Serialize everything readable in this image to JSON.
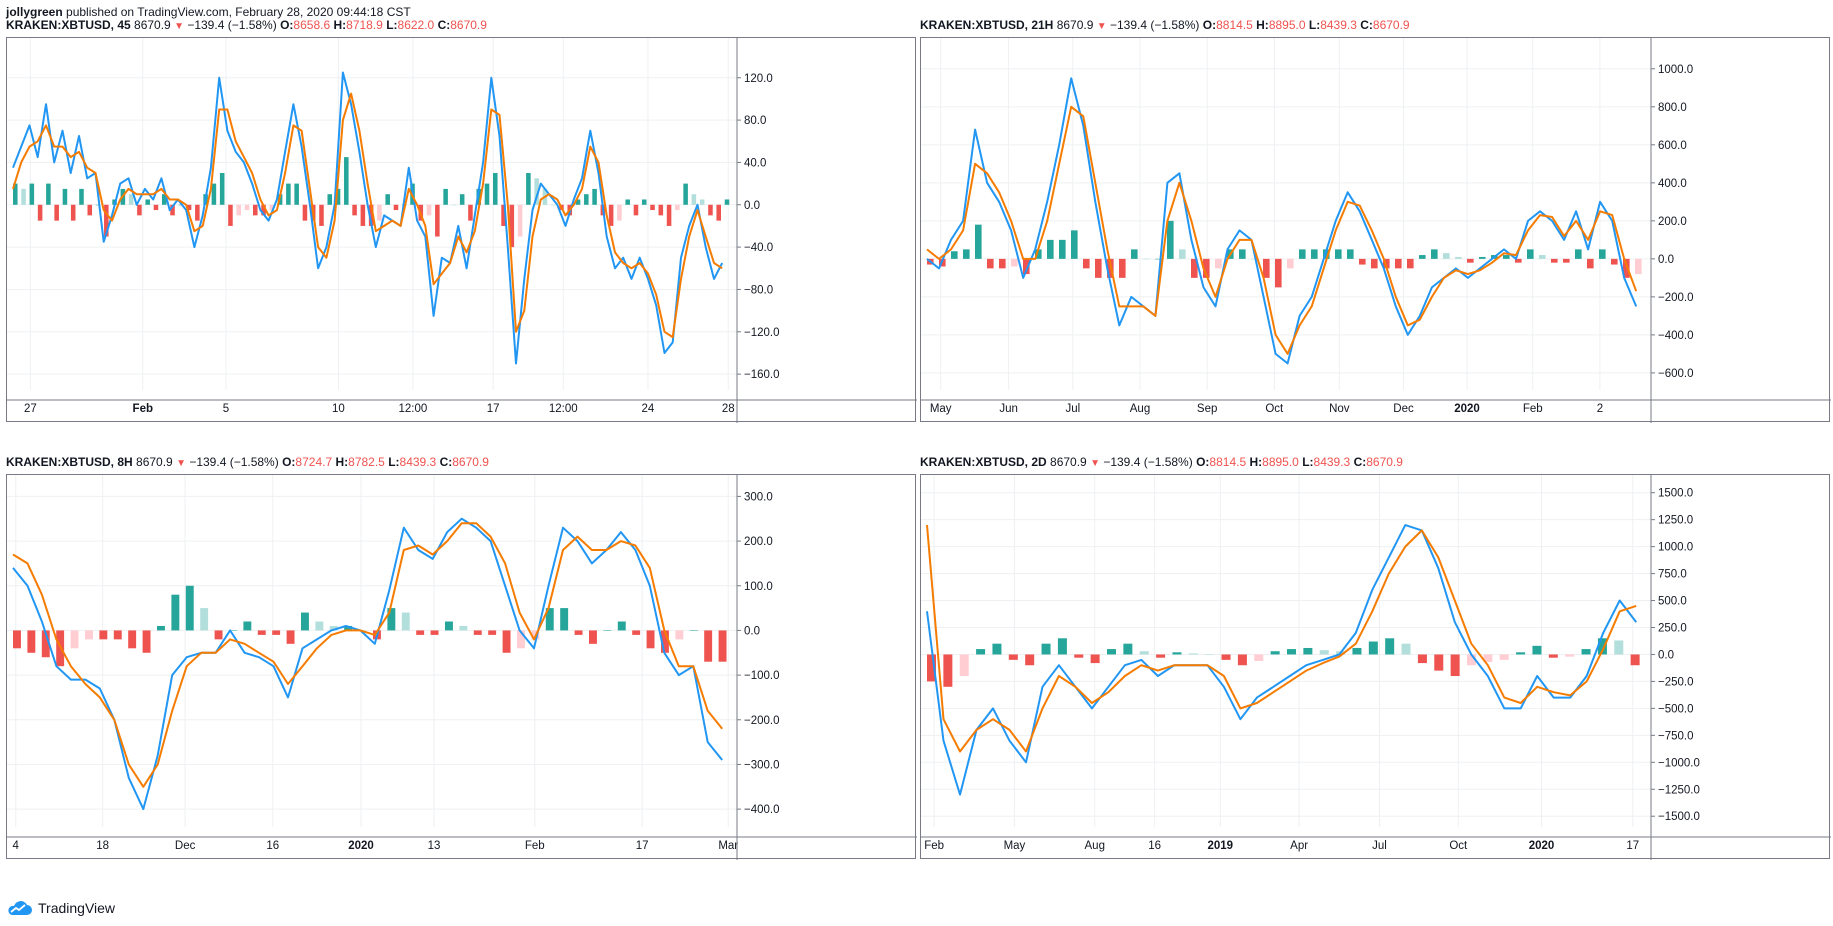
{
  "header": {
    "author": "jollygreen",
    "published": "published on TradingView.com, February 28, 2020 09:44:18 CST"
  },
  "colors": {
    "line_blue": "#2196f3",
    "line_orange": "#f57c00",
    "hist_green_strong": "#26a69a",
    "hist_green_light": "#b2dfdb",
    "hist_red_strong": "#ef5350",
    "hist_red_light": "#ffcdd2",
    "grid": "#eef0f3"
  },
  "footer": {
    "brand": "TradingView"
  },
  "panels": [
    {
      "symbol": "KRAKEN:XBTUSD, 45",
      "last": "8670.9",
      "change": "−139.4 (−1.58%)",
      "o": "8658.6",
      "h": "8718.9",
      "l": "8622.0",
      "c": "8670.9",
      "y_ticks": [
        "120.0",
        "80.0",
        "40.0",
        "0.0",
        "−40.0",
        "−80.0",
        "−120.0",
        "−160.0"
      ],
      "x_ticks": [
        {
          "t": "27",
          "b": false
        },
        {
          "t": "Feb",
          "b": true
        },
        {
          "t": "5",
          "b": false
        },
        {
          "t": "10",
          "b": false
        },
        {
          "t": "12:00",
          "b": false
        },
        {
          "t": "17",
          "b": false
        },
        {
          "t": "12:00",
          "b": false
        },
        {
          "t": "24",
          "b": false
        },
        {
          "t": "28",
          "b": false
        }
      ]
    },
    {
      "symbol": "KRAKEN:XBTUSD, 21H",
      "last": "8670.9",
      "change": "−139.4 (−1.58%)",
      "o": "8814.5",
      "h": "8895.0",
      "l": "8439.3",
      "c": "8670.9",
      "y_ticks": [
        "1000.0",
        "800.0",
        "600.0",
        "400.0",
        "200.0",
        "0.0",
        "−200.0",
        "−400.0",
        "−600.0"
      ],
      "x_ticks": [
        {
          "t": "May",
          "b": false
        },
        {
          "t": "Jun",
          "b": false
        },
        {
          "t": "Jul",
          "b": false
        },
        {
          "t": "Aug",
          "b": false
        },
        {
          "t": "Sep",
          "b": false
        },
        {
          "t": "Oct",
          "b": false
        },
        {
          "t": "Nov",
          "b": false
        },
        {
          "t": "Dec",
          "b": false
        },
        {
          "t": "2020",
          "b": true
        },
        {
          "t": "Feb",
          "b": false
        },
        {
          "t": "2",
          "b": false
        }
      ]
    },
    {
      "symbol": "KRAKEN:XBTUSD, 8H",
      "last": "8670.9",
      "change": "−139.4 (−1.58%)",
      "o": "8724.7",
      "h": "8782.5",
      "l": "8439.3",
      "c": "8670.9",
      "y_ticks": [
        "300.0",
        "200.0",
        "100.0",
        "0.0",
        "−100.0",
        "−200.0",
        "−300.0",
        "−400.0"
      ],
      "x_ticks": [
        {
          "t": "4",
          "b": false
        },
        {
          "t": "18",
          "b": false
        },
        {
          "t": "Dec",
          "b": false
        },
        {
          "t": "16",
          "b": false
        },
        {
          "t": "2020",
          "b": true
        },
        {
          "t": "13",
          "b": false
        },
        {
          "t": "Feb",
          "b": false
        },
        {
          "t": "17",
          "b": false
        },
        {
          "t": "Mar",
          "b": false
        }
      ]
    },
    {
      "symbol": "KRAKEN:XBTUSD, 2D",
      "last": "8670.9",
      "change": "−139.4 (−1.58%)",
      "o": "8814.5",
      "h": "8895.0",
      "l": "8439.3",
      "c": "8670.9",
      "y_ticks": [
        "1500.0",
        "1250.0",
        "1000.0",
        "750.0",
        "500.0",
        "250.0",
        "0.0",
        "−250.0",
        "−500.0",
        "−750.0",
        "−1000.0",
        "−1250.0",
        "−1500.0"
      ],
      "x_ticks": [
        {
          "t": "Feb",
          "b": false
        },
        {
          "t": "May",
          "b": false
        },
        {
          "t": "Aug",
          "b": false
        },
        {
          "t": "16",
          "b": false
        },
        {
          "t": "2019",
          "b": true
        },
        {
          "t": "Apr",
          "b": false
        },
        {
          "t": "Jul",
          "b": false
        },
        {
          "t": "Oct",
          "b": false
        },
        {
          "t": "2020",
          "b": true
        },
        {
          "t": "17",
          "b": false
        }
      ]
    }
  ],
  "chart_data": [
    {
      "type": "line",
      "indicator": "MACD with histogram",
      "ylim": [
        -175,
        150
      ],
      "x_tick_pos": [
        0.032,
        0.186,
        0.3,
        0.454,
        0.556,
        0.666,
        0.762,
        0.878,
        0.988
      ],
      "series": [
        {
          "color": "#2196f3",
          "values": [
            35,
            55,
            75,
            45,
            95,
            40,
            70,
            30,
            65,
            25,
            30,
            -35,
            -10,
            20,
            25,
            0,
            15,
            5,
            25,
            -5,
            5,
            -5,
            -40,
            -10,
            35,
            120,
            70,
            50,
            40,
            20,
            -5,
            -15,
            5,
            50,
            95,
            55,
            0,
            -60,
            -40,
            0,
            125,
            95,
            50,
            0,
            -40,
            -10,
            -15,
            -20,
            35,
            -15,
            -30,
            -105,
            -50,
            -55,
            -20,
            -60,
            -10,
            40,
            120,
            65,
            -40,
            -150,
            -70,
            -5,
            20,
            10,
            0,
            -20,
            5,
            25,
            70,
            30,
            -30,
            -60,
            -50,
            -70,
            -50,
            -70,
            -95,
            -140,
            -130,
            -50,
            -20,
            0,
            -40,
            -70,
            -55
          ]
        },
        {
          "color": "#f57c00",
          "values": [
            15,
            40,
            55,
            60,
            75,
            55,
            55,
            45,
            50,
            35,
            30,
            -5,
            -15,
            5,
            15,
            10,
            10,
            10,
            15,
            5,
            5,
            0,
            -25,
            -20,
            15,
            90,
            90,
            60,
            45,
            30,
            5,
            -10,
            -5,
            30,
            75,
            70,
            15,
            -40,
            -50,
            -15,
            80,
            105,
            70,
            20,
            -25,
            -20,
            -15,
            -20,
            15,
            0,
            -20,
            -75,
            -65,
            -55,
            -30,
            -45,
            -25,
            20,
            90,
            85,
            0,
            -120,
            -100,
            -30,
            5,
            10,
            5,
            -10,
            0,
            15,
            55,
            40,
            -10,
            -45,
            -55,
            -60,
            -55,
            -65,
            -85,
            -120,
            -125,
            -70,
            -30,
            -5,
            -30,
            -55,
            -60
          ]
        }
      ],
      "histogram": [
        20,
        15,
        20,
        -15,
        20,
        -15,
        15,
        -15,
        15,
        -10,
        0,
        -30,
        5,
        15,
        10,
        -10,
        5,
        -5,
        10,
        -10,
        0,
        -5,
        -15,
        10,
        20,
        30,
        -20,
        -10,
        -5,
        -10,
        -10,
        -5,
        10,
        20,
        20,
        -15,
        -15,
        -20,
        10,
        15,
        45,
        -10,
        -20,
        -20,
        -15,
        10,
        -5,
        0,
        20,
        -15,
        -10,
        -30,
        15,
        0,
        10,
        -15,
        15,
        20,
        30,
        -20,
        -40,
        -30,
        30,
        25,
        15,
        0,
        -5,
        -10,
        5,
        10,
        15,
        -10,
        -20,
        -15,
        5,
        -10,
        5,
        -5,
        -10,
        -20,
        -5,
        20,
        10,
        5,
        -10,
        -15,
        5
      ]
    },
    {
      "type": "line",
      "indicator": "MACD with histogram",
      "ylim": [
        -690,
        1120
      ],
      "x_tick_pos": [
        0.027,
        0.12,
        0.208,
        0.3,
        0.392,
        0.484,
        0.573,
        0.661,
        0.748,
        0.838,
        0.93
      ],
      "series": [
        {
          "color": "#2196f3",
          "values": [
            0,
            -50,
            100,
            200,
            680,
            400,
            300,
            150,
            -100,
            50,
            300,
            600,
            950,
            700,
            300,
            -50,
            -350,
            -200,
            -250,
            -300,
            400,
            450,
            100,
            -150,
            -250,
            50,
            150,
            100,
            -200,
            -500,
            -550,
            -300,
            -200,
            0,
            200,
            350,
            250,
            100,
            -50,
            -250,
            -400,
            -300,
            -150,
            -100,
            -50,
            -100,
            -50,
            0,
            50,
            0,
            200,
            250,
            200,
            100,
            250,
            50,
            300,
            200,
            -100,
            -250
          ]
        },
        {
          "color": "#f57c00",
          "values": [
            50,
            0,
            50,
            150,
            500,
            450,
            350,
            200,
            0,
            0,
            200,
            500,
            800,
            750,
            400,
            50,
            -250,
            -250,
            -250,
            -300,
            200,
            400,
            200,
            -50,
            -200,
            0,
            100,
            100,
            -100,
            -400,
            -500,
            -350,
            -250,
            -50,
            150,
            300,
            280,
            150,
            0,
            -200,
            -350,
            -320,
            -200,
            -100,
            -60,
            -80,
            -60,
            -20,
            30,
            20,
            150,
            230,
            220,
            120,
            200,
            100,
            250,
            230,
            0,
            -170
          ]
        }
      ],
      "histogram": [
        -30,
        -40,
        40,
        50,
        180,
        -50,
        -50,
        -40,
        -80,
        50,
        100,
        100,
        150,
        -50,
        -100,
        -100,
        -100,
        50,
        0,
        0,
        200,
        50,
        -100,
        -100,
        -50,
        50,
        50,
        0,
        -100,
        -150,
        -50,
        50,
        50,
        50,
        50,
        50,
        -30,
        -50,
        -50,
        -50,
        -50,
        20,
        50,
        30,
        10,
        -20,
        10,
        20,
        20,
        -20,
        50,
        20,
        -20,
        -20,
        50,
        -50,
        50,
        -30,
        -100,
        -80
      ]
    },
    {
      "type": "line",
      "indicator": "MACD with histogram",
      "ylim": [
        -440,
        330
      ],
      "x_tick_pos": [
        0.012,
        0.131,
        0.244,
        0.364,
        0.485,
        0.585,
        0.723,
        0.87,
        0.988
      ],
      "series": [
        {
          "color": "#2196f3",
          "values": [
            140,
            100,
            20,
            -80,
            -110,
            -110,
            -130,
            -200,
            -330,
            -400,
            -280,
            -100,
            -60,
            -50,
            -50,
            0,
            -50,
            -60,
            -80,
            -150,
            -40,
            -20,
            0,
            10,
            0,
            -30,
            90,
            230,
            180,
            160,
            220,
            250,
            230,
            200,
            100,
            0,
            -40,
            100,
            230,
            200,
            150,
            180,
            220,
            180,
            100,
            -50,
            -100,
            -80,
            -250,
            -290
          ]
        },
        {
          "color": "#f57c00",
          "values": [
            170,
            150,
            80,
            -20,
            -80,
            -120,
            -150,
            -200,
            -300,
            -350,
            -300,
            -180,
            -80,
            -50,
            -50,
            -20,
            -30,
            -50,
            -70,
            -120,
            -80,
            -40,
            -10,
            0,
            0,
            -10,
            40,
            180,
            190,
            170,
            200,
            240,
            240,
            210,
            150,
            40,
            -20,
            50,
            180,
            210,
            180,
            180,
            200,
            190,
            140,
            0,
            -80,
            -80,
            -180,
            -220
          ]
        },
        {
          "color": "#00000000",
          "values": []
        }
      ],
      "histogram": [
        -40,
        -50,
        -60,
        -80,
        -40,
        -20,
        -20,
        -20,
        -40,
        -50,
        10,
        80,
        100,
        50,
        -20,
        0,
        20,
        -10,
        -10,
        -30,
        40,
        20,
        10,
        10,
        0,
        -20,
        50,
        40,
        -10,
        -10,
        20,
        10,
        -10,
        -10,
        -50,
        -40,
        -20,
        50,
        50,
        -10,
        -30,
        0,
        20,
        -10,
        -40,
        -50,
        -20,
        0,
        -70,
        -70
      ]
    },
    {
      "type": "line",
      "indicator": "MACD with histogram",
      "ylim": [
        -1600,
        1590
      ],
      "x_tick_pos": [
        0.018,
        0.128,
        0.238,
        0.32,
        0.41,
        0.518,
        0.628,
        0.736,
        0.85,
        0.975
      ],
      "series": [
        {
          "color": "#2196f3",
          "values": [
            400,
            -800,
            -1300,
            -700,
            -500,
            -800,
            -1000,
            -300,
            -100,
            -300,
            -500,
            -300,
            -100,
            -50,
            -200,
            -100,
            -100,
            -100,
            -300,
            -600,
            -400,
            -300,
            -200,
            -100,
            -50,
            0,
            200,
            600,
            900,
            1200,
            1150,
            800,
            300,
            0,
            -200,
            -500,
            -500,
            -200,
            -400,
            -400,
            -200,
            200,
            500,
            300
          ]
        },
        {
          "color": "#f57c00",
          "values": [
            1200,
            -600,
            -900,
            -700,
            -600,
            -700,
            -900,
            -500,
            -200,
            -300,
            -450,
            -350,
            -200,
            -100,
            -150,
            -100,
            -100,
            -100,
            -200,
            -500,
            -450,
            -350,
            -250,
            -150,
            -80,
            -20,
            100,
            400,
            750,
            1000,
            1150,
            900,
            500,
            100,
            -100,
            -400,
            -450,
            -300,
            -350,
            -380,
            -250,
            50,
            400,
            450
          ]
        }
      ],
      "histogram": [
        -250,
        -300,
        -200,
        50,
        100,
        -50,
        -100,
        100,
        150,
        -30,
        -80,
        50,
        100,
        30,
        -30,
        20,
        10,
        0,
        -50,
        -100,
        -60,
        30,
        50,
        60,
        40,
        30,
        60,
        120,
        150,
        100,
        -80,
        -150,
        -200,
        -100,
        -70,
        -50,
        20,
        80,
        -30,
        -20,
        50,
        150,
        130,
        -100
      ]
    }
  ]
}
